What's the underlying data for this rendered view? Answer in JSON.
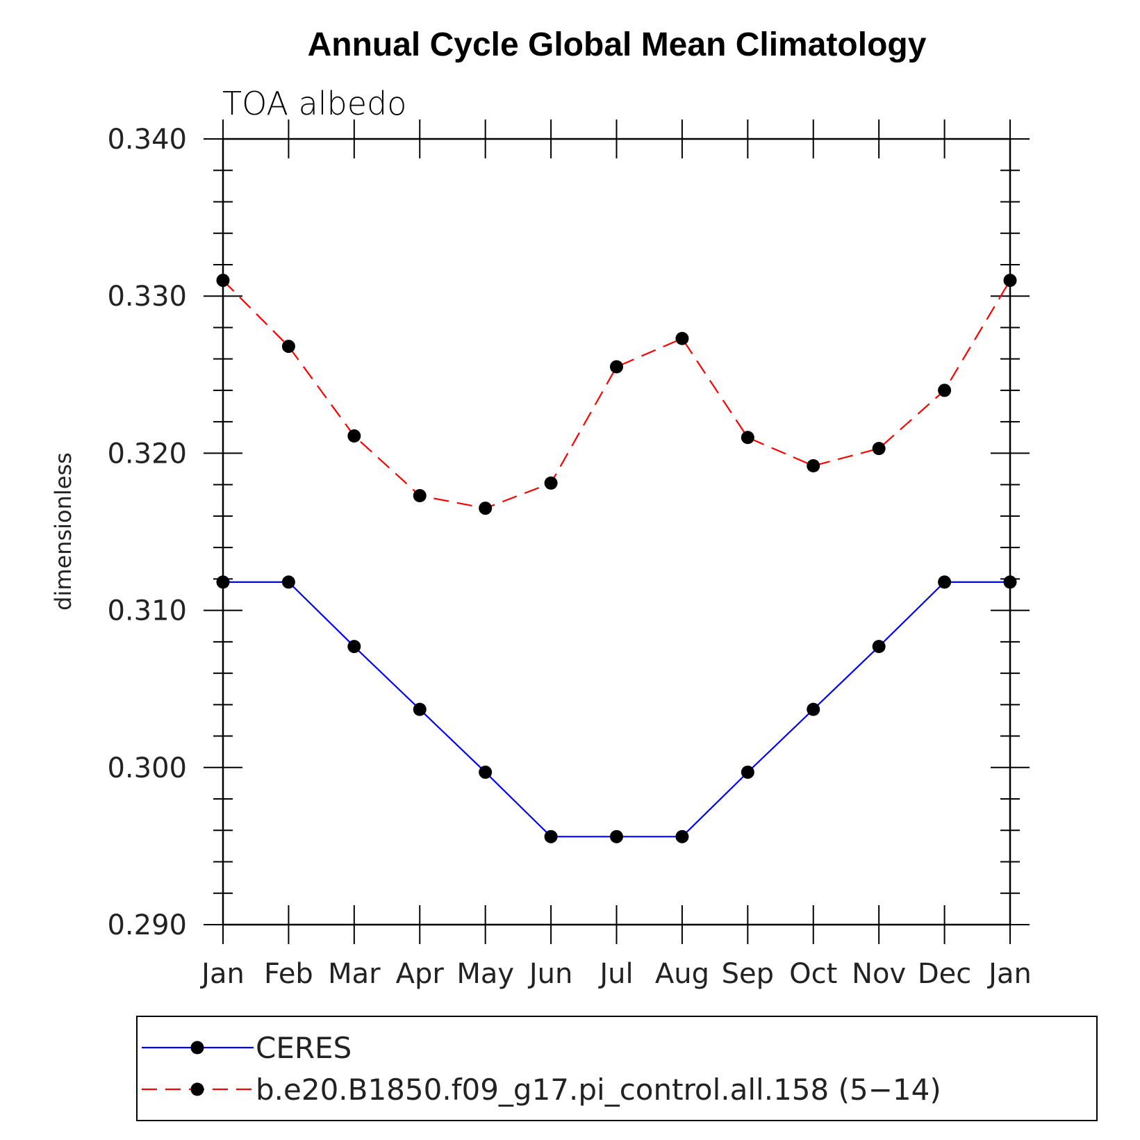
{
  "chart_data": {
    "type": "line",
    "title": "Annual Cycle Global Mean Climatology",
    "subtitle": "TOA albedo",
    "ylabel": "dimensionless",
    "xlabel": "",
    "categories": [
      "Jan",
      "Feb",
      "Mar",
      "Apr",
      "May",
      "Jun",
      "Jul",
      "Aug",
      "Sep",
      "Oct",
      "Nov",
      "Dec",
      "Jan"
    ],
    "ylim": [
      0.29,
      0.34
    ],
    "yticks": [
      "0.290",
      "0.300",
      "0.310",
      "0.320",
      "0.330",
      "0.340"
    ],
    "legend_position": "bottom",
    "series": [
      {
        "name": "CERES",
        "color": "#0000ff",
        "dash": "solid",
        "values": [
          0.3118,
          0.3118,
          0.3077,
          0.3037,
          0.2997,
          0.2956,
          0.2956,
          0.2956,
          0.2997,
          0.3037,
          0.3077,
          0.3118,
          0.3118
        ]
      },
      {
        "name": "b.e20.B1850.f09_g17.pi_control.all.158 (5−14)",
        "color": "#ff0000",
        "dash": "dashed",
        "values": [
          0.331,
          0.3268,
          0.3211,
          0.3173,
          0.3165,
          0.3181,
          0.3255,
          0.3273,
          0.321,
          0.3192,
          0.3203,
          0.324,
          0.331
        ]
      }
    ]
  }
}
